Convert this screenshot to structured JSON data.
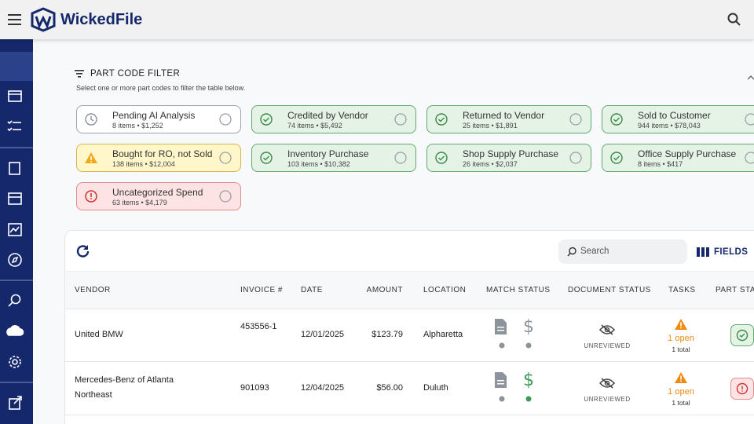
{
  "header": {
    "logo": "WickedFile"
  },
  "filter": {
    "title": "PART CODE FILTER",
    "subtitle": "Select one or more part codes to filter the table below.",
    "chips": [
      {
        "label": "Pending AI Analysis",
        "detail": "8 items • $1,252"
      },
      {
        "label": "Credited by Vendor",
        "detail": "74 items • $5,492"
      },
      {
        "label": "Returned to Vendor",
        "detail": "25 items • $1,891"
      },
      {
        "label": "Sold to Customer",
        "detail": "944 items • $78,043"
      },
      {
        "label": "Bought for RO, not Sold",
        "detail": "138 items • $12,004"
      },
      {
        "label": "Inventory Purchase",
        "detail": "103 items • $10,382"
      },
      {
        "label": "Shop Supply Purchase",
        "detail": "26 items • $2,037"
      },
      {
        "label": "Office Supply Purchase",
        "detail": "8 items • $417"
      },
      {
        "label": "Uncategorized Spend",
        "detail": "63 items • $4,179"
      }
    ]
  },
  "table": {
    "search_placeholder": "Search",
    "fields_button": "FIELDS",
    "columns": [
      "VENDOR",
      "INVOICE #",
      "DATE",
      "AMOUNT",
      "LOCATION",
      "MATCH STATUS",
      "DOCUMENT STATUS",
      "TASKS",
      "PART STATUS"
    ],
    "rows": [
      {
        "vendor": "United BMW",
        "invoice": "453556-1",
        "date": "12/01/2025",
        "amount": "$123.79",
        "location": "Alpharetta",
        "document_status": "UNREVIEWED",
        "tasks_open": "1 open",
        "tasks_total": "1 total"
      },
      {
        "vendor": "Mercedes-Benz of Atlanta Northeast",
        "invoice": "901093",
        "date": "12/04/2025",
        "amount": "$56.00",
        "location": "Duluth",
        "document_status": "UNREVIEWED",
        "tasks_open": "1 open",
        "tasks_total": "1 total"
      }
    ]
  }
}
